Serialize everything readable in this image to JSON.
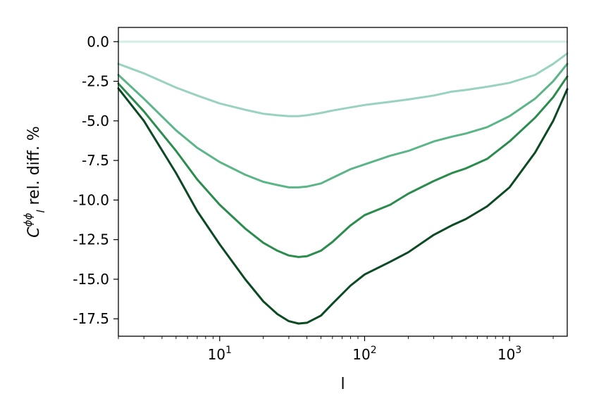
{
  "chart_data": {
    "type": "line",
    "title": "",
    "xlabel": "l",
    "ylabel": {
      "base": "C",
      "superscript": "ϕϕ",
      "subscript": "l",
      "rest": " rel. diff. %"
    },
    "xscale": "log",
    "xlim": [
      2,
      2500
    ],
    "ylim": [
      -18.6,
      0.9
    ],
    "grid": false,
    "legend": "none",
    "x_tick_labels": [
      {
        "base": "10",
        "exp": "1",
        "value": 10
      },
      {
        "base": "10",
        "exp": "2",
        "value": 100
      },
      {
        "base": "10",
        "exp": "3",
        "value": 1000
      }
    ],
    "y_ticks": [
      0,
      -2.5,
      -5,
      -7.5,
      -10,
      -12.5,
      -15,
      -17.5
    ],
    "y_tick_labels": [
      "0.0",
      "-2.5",
      "-5.0",
      "-7.5",
      "-10.0",
      "-12.5",
      "-15.0",
      "-17.5"
    ],
    "x": [
      2,
      3,
      5,
      7,
      10,
      15,
      20,
      25,
      30,
      35,
      40,
      50,
      60,
      80,
      100,
      150,
      200,
      300,
      400,
      500,
      700,
      1000,
      1500,
      2000,
      2500
    ],
    "series": [
      {
        "color": "#d4ede6",
        "values": [
          0.0,
          0.0,
          0.0,
          0.0,
          0.0,
          0.0,
          0.0,
          0.0,
          0.0,
          0.0,
          0.0,
          0.0,
          0.0,
          0.0,
          0.0,
          0.0,
          0.0,
          0.0,
          0.0,
          0.0,
          0.0,
          0.0,
          0.0,
          0.0,
          0.0
        ]
      },
      {
        "color": "#99d2c1",
        "values": [
          -1.4,
          -2.0,
          -2.9,
          -3.4,
          -3.9,
          -4.3,
          -4.55,
          -4.65,
          -4.7,
          -4.7,
          -4.65,
          -4.5,
          -4.35,
          -4.15,
          -4.0,
          -3.8,
          -3.65,
          -3.4,
          -3.15,
          -3.05,
          -2.85,
          -2.6,
          -2.1,
          -1.4,
          -0.75
        ]
      },
      {
        "color": "#5cb588",
        "values": [
          -2.1,
          -3.6,
          -5.6,
          -6.7,
          -7.6,
          -8.4,
          -8.85,
          -9.05,
          -9.2,
          -9.2,
          -9.15,
          -8.95,
          -8.6,
          -8.05,
          -7.75,
          -7.2,
          -6.9,
          -6.3,
          -6.0,
          -5.8,
          -5.4,
          -4.7,
          -3.6,
          -2.5,
          -1.4
        ]
      },
      {
        "color": "#2b8c4e",
        "values": [
          -2.65,
          -4.4,
          -6.9,
          -8.7,
          -10.3,
          -11.8,
          -12.7,
          -13.2,
          -13.5,
          -13.6,
          -13.55,
          -13.2,
          -12.65,
          -11.6,
          -10.95,
          -10.3,
          -9.6,
          -8.8,
          -8.3,
          -8.0,
          -7.4,
          -6.3,
          -4.8,
          -3.5,
          -2.2
        ]
      },
      {
        "color": "#0c4a24",
        "values": [
          -2.95,
          -5.0,
          -8.3,
          -10.7,
          -12.8,
          -15.0,
          -16.4,
          -17.2,
          -17.65,
          -17.8,
          -17.75,
          -17.3,
          -16.55,
          -15.4,
          -14.7,
          -13.9,
          -13.3,
          -12.2,
          -11.6,
          -11.2,
          -10.4,
          -9.2,
          -7.0,
          -5.0,
          -3.0
        ]
      }
    ]
  }
}
